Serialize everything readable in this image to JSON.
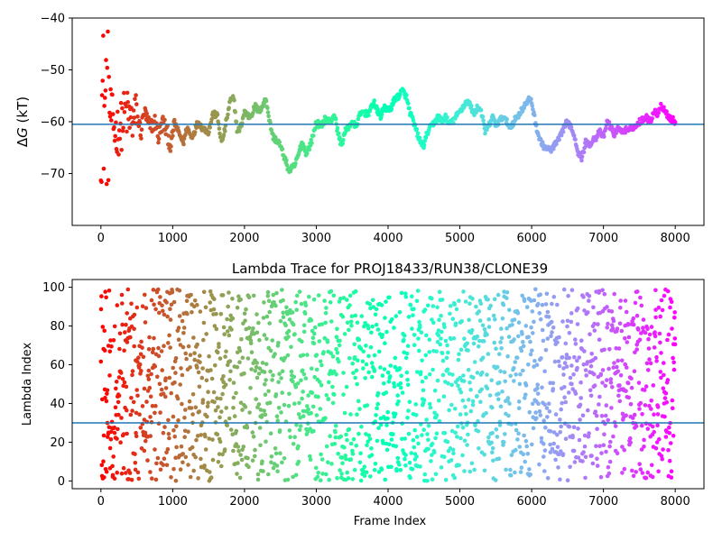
{
  "chart_data": [
    {
      "type": "scatter",
      "title": "",
      "xlabel": "",
      "ylabel_prefix": "Δ",
      "ylabel_symbol": "G",
      "ylabel_suffix": " (kT)",
      "xlim": [
        -400,
        8400
      ],
      "ylim": [
        -80,
        -40
      ],
      "xticks": [
        0,
        1000,
        2000,
        3000,
        4000,
        5000,
        6000,
        7000,
        8000
      ],
      "yticks": [
        -70,
        -60,
        -50,
        -40
      ],
      "hline": -60.5,
      "hline_color": "#1f77b4",
      "colormap": "rainbow (red at frame 0 to violet at frame 8000)",
      "x_range": [
        0,
        8000
      ],
      "trace_points": [
        [
          0,
          -56
        ],
        [
          60,
          -57
        ],
        [
          130,
          -58
        ],
        [
          200,
          -62
        ],
        [
          280,
          -61
        ],
        [
          340,
          -58
        ],
        [
          420,
          -60
        ],
        [
          500,
          -59
        ],
        [
          560,
          -62
        ],
        [
          600,
          -58
        ],
        [
          680,
          -61
        ],
        [
          760,
          -60
        ],
        [
          800,
          -63
        ],
        [
          860,
          -60
        ],
        [
          920,
          -62
        ],
        [
          980,
          -65
        ],
        [
          1020,
          -60
        ],
        [
          1080,
          -62
        ],
        [
          1150,
          -64
        ],
        [
          1200,
          -61
        ],
        [
          1260,
          -63
        ],
        [
          1300,
          -62
        ],
        [
          1350,
          -60
        ],
        [
          1400,
          -61
        ],
        [
          1500,
          -62
        ],
        [
          1560,
          -58.5
        ],
        [
          1620,
          -58.8
        ],
        [
          1680,
          -64
        ],
        [
          1720,
          -62
        ],
        [
          1760,
          -59
        ],
        [
          1800,
          -56
        ],
        [
          1850,
          -55.5
        ],
        [
          1900,
          -62
        ],
        [
          1950,
          -61
        ],
        [
          2000,
          -58
        ],
        [
          2060,
          -59
        ],
        [
          2100,
          -58.5
        ],
        [
          2150,
          -57
        ],
        [
          2200,
          -58
        ],
        [
          2250,
          -57
        ],
        [
          2300,
          -55.5
        ],
        [
          2350,
          -60
        ],
        [
          2400,
          -63
        ],
        [
          2480,
          -64
        ],
        [
          2560,
          -67
        ],
        [
          2620,
          -69.5
        ],
        [
          2700,
          -68.5
        ],
        [
          2760,
          -66
        ],
        [
          2800,
          -64
        ],
        [
          2860,
          -66
        ],
        [
          2900,
          -65
        ],
        [
          2950,
          -63
        ],
        [
          3000,
          -60
        ],
        [
          3060,
          -61
        ],
        [
          3120,
          -59.5
        ],
        [
          3200,
          -60
        ],
        [
          3250,
          -58.5
        ],
        [
          3300,
          -62
        ],
        [
          3350,
          -64.5
        ],
        [
          3400,
          -62
        ],
        [
          3450,
          -61
        ],
        [
          3500,
          -60
        ],
        [
          3550,
          -61
        ],
        [
          3600,
          -59
        ],
        [
          3650,
          -58
        ],
        [
          3700,
          -58.5
        ],
        [
          3750,
          -58
        ],
        [
          3800,
          -56
        ],
        [
          3850,
          -58
        ],
        [
          3900,
          -59
        ],
        [
          3950,
          -57
        ],
        [
          4000,
          -58
        ],
        [
          4050,
          -57
        ],
        [
          4100,
          -55.5
        ],
        [
          4150,
          -55
        ],
        [
          4200,
          -54
        ],
        [
          4250,
          -55
        ],
        [
          4300,
          -58
        ],
        [
          4350,
          -60
        ],
        [
          4400,
          -62
        ],
        [
          4450,
          -64
        ],
        [
          4500,
          -64.5
        ],
        [
          4550,
          -62
        ],
        [
          4600,
          -61
        ],
        [
          4650,
          -60
        ],
        [
          4700,
          -59
        ],
        [
          4750,
          -60
        ],
        [
          4800,
          -59
        ],
        [
          4850,
          -60.5
        ],
        [
          4900,
          -60
        ],
        [
          4950,
          -59
        ],
        [
          5000,
          -58
        ],
        [
          5050,
          -57
        ],
        [
          5100,
          -56
        ],
        [
          5150,
          -57
        ],
        [
          5200,
          -58.5
        ],
        [
          5250,
          -57
        ],
        [
          5300,
          -58
        ],
        [
          5350,
          -62
        ],
        [
          5400,
          -61
        ],
        [
          5450,
          -59
        ],
        [
          5500,
          -60.5
        ],
        [
          5550,
          -60
        ],
        [
          5600,
          -59
        ],
        [
          5650,
          -60
        ],
        [
          5700,
          -61
        ],
        [
          5750,
          -60
        ],
        [
          5800,
          -59
        ],
        [
          5850,
          -58
        ],
        [
          5900,
          -57
        ],
        [
          5950,
          -56
        ],
        [
          5990,
          -55.5
        ],
        [
          6050,
          -60
        ],
        [
          6100,
          -63
        ],
        [
          6150,
          -64.5
        ],
        [
          6200,
          -65
        ],
        [
          6250,
          -65.5
        ],
        [
          6300,
          -65
        ],
        [
          6350,
          -64
        ],
        [
          6400,
          -63
        ],
        [
          6450,
          -61
        ],
        [
          6500,
          -60
        ],
        [
          6550,
          -61
        ],
        [
          6600,
          -63
        ],
        [
          6650,
          -66
        ],
        [
          6700,
          -67
        ],
        [
          6750,
          -64
        ],
        [
          6800,
          -64.5
        ],
        [
          6850,
          -63.5
        ],
        [
          6900,
          -63
        ],
        [
          6950,
          -62
        ],
        [
          7000,
          -63
        ],
        [
          7050,
          -60
        ],
        [
          7100,
          -61
        ],
        [
          7150,
          -62.5
        ],
        [
          7200,
          -61
        ],
        [
          7250,
          -62
        ],
        [
          7300,
          -61.5
        ],
        [
          7350,
          -62
        ],
        [
          7400,
          -61
        ],
        [
          7450,
          -61
        ],
        [
          7500,
          -60
        ],
        [
          7550,
          -59.5
        ],
        [
          7600,
          -59
        ],
        [
          7650,
          -60
        ],
        [
          7700,
          -58
        ],
        [
          7750,
          -58.5
        ],
        [
          7800,
          -57
        ],
        [
          7850,
          -57.5
        ],
        [
          7900,
          -59
        ],
        [
          7950,
          -59.5
        ],
        [
          8000,
          -60
        ]
      ]
    },
    {
      "type": "scatter",
      "title": "Lambda Trace for PROJ18433/RUN38/CLONE39",
      "xlabel": "Frame Index",
      "ylabel": "Lambda Index",
      "xlim": [
        -400,
        8400
      ],
      "ylim": [
        -4,
        104
      ],
      "xticks": [
        0,
        1000,
        2000,
        3000,
        4000,
        5000,
        6000,
        7000,
        8000
      ],
      "yticks": [
        0,
        20,
        40,
        60,
        80,
        100
      ],
      "hline": 30,
      "hline_color": "#1f77b4",
      "colormap": "rainbow (red at frame 0 to violet at frame 8000)",
      "x_range": [
        0,
        8000
      ],
      "y_range": [
        0,
        99
      ]
    }
  ]
}
